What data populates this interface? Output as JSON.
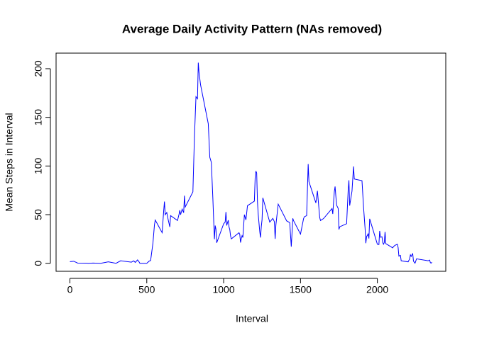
{
  "chart_data": {
    "type": "line",
    "title": "Average Daily Activity Pattern (NAs removed)",
    "x_label": "Interval",
    "y_label": "Mean Steps in Interval",
    "color": "#0000ff",
    "x": [
      0,
      25,
      50,
      110,
      120,
      150,
      200,
      250,
      300,
      330,
      400,
      415,
      425,
      440,
      450,
      455,
      500,
      515,
      525,
      540,
      550,
      555,
      600,
      610,
      615,
      620,
      630,
      640,
      650,
      655,
      700,
      710,
      715,
      720,
      730,
      740,
      745,
      750,
      800,
      810,
      820,
      830,
      835,
      840,
      850,
      900,
      910,
      920,
      930,
      935,
      940,
      945,
      950,
      955,
      1000,
      1010,
      1015,
      1020,
      1030,
      1035,
      1040,
      1045,
      1050,
      1100,
      1105,
      1110,
      1115,
      1120,
      1125,
      1135,
      1145,
      1155,
      1200,
      1205,
      1210,
      1215,
      1220,
      1225,
      1235,
      1240,
      1245,
      1250,
      1255,
      1300,
      1320,
      1330,
      1335,
      1340,
      1355,
      1410,
      1430,
      1440,
      1450,
      1455,
      1500,
      1520,
      1525,
      1540,
      1550,
      1555,
      1600,
      1610,
      1625,
      1630,
      1650,
      1705,
      1710,
      1720,
      1725,
      1730,
      1735,
      1745,
      1750,
      1755,
      1800,
      1810,
      1815,
      1820,
      1835,
      1845,
      1850,
      1900,
      1910,
      1920,
      1925,
      1930,
      1940,
      1945,
      1950,
      2000,
      2010,
      2015,
      2020,
      2030,
      2035,
      2040,
      2045,
      2050,
      2055,
      2100,
      2105,
      2115,
      2130,
      2135,
      2140,
      2145,
      2150,
      2155,
      2200,
      2210,
      2215,
      2220,
      2225,
      2230,
      2235,
      2245,
      2255,
      2330,
      2340,
      2345,
      2350,
      2355
    ],
    "values": [
      1.7,
      2.1,
      0.3,
      0.2,
      0,
      0.3,
      0,
      1.5,
      0,
      2.6,
      1.2,
      2.5,
      0.9,
      3.5,
      1.4,
      0,
      0,
      2.2,
      2.9,
      20.7,
      39.5,
      44.5,
      31.5,
      53.8,
      63.5,
      49.9,
      52.2,
      44.3,
      37.4,
      49,
      44,
      50.5,
      54.5,
      49.9,
      55.7,
      52,
      69.5,
      57.8,
      73.4,
      129.4,
      171.2,
      169.1,
      206.2,
      195.9,
      183.4,
      143.5,
      109,
      103.7,
      66.2,
      45.2,
      24.8,
      38.8,
      35,
      21.1,
      40.6,
      42.4,
      52.7,
      38.9,
      44.3,
      37.4,
      34.7,
      28.3,
      25.1,
      31.4,
      29.7,
      21.3,
      25.5,
      28.4,
      26.5,
      50,
      44.6,
      59.2,
      63.9,
      87.7,
      94.8,
      92.8,
      63.4,
      50.2,
      32.4,
      26.5,
      37.7,
      45,
      67.3,
      42.3,
      46.2,
      42.8,
      25.1,
      39.5,
      60.8,
      43.6,
      41.8,
      17.1,
      46.2,
      43.8,
      30,
      45.9,
      47.8,
      49,
      102,
      83.9,
      62.1,
      74.5,
      47.1,
      44,
      46,
      56.3,
      50.7,
      73.6,
      78.9,
      68.9,
      59.7,
      56.5,
      34.8,
      37.5,
      40.7,
      74.7,
      85.3,
      59.3,
      74.2,
      99.5,
      86.6,
      84.9,
      58,
      36.1,
      20.7,
      27.4,
      30.2,
      25.5,
      45.7,
      19.6,
      19.3,
      33.3,
      26.8,
      27.3,
      21.3,
      19.6,
      21.3,
      32.3,
      20.2,
      15.9,
      17.2,
      18.5,
      19.6,
      16.3,
      7.4,
      7.8,
      8.1,
      2.6,
      1.5,
      4.6,
      8.7,
      7.1,
      8.7,
      9.8,
      2.2,
      0.1,
      4.6,
      2.6,
      3.3,
      0.6,
      0.2,
      1.1
    ],
    "xlim": [
      -90,
      2445
    ],
    "ylim": [
      -8.2,
      216
    ],
    "xticks": [
      0,
      500,
      1000,
      1500,
      2000
    ],
    "yticks": [
      0,
      50,
      100,
      150,
      200
    ]
  }
}
